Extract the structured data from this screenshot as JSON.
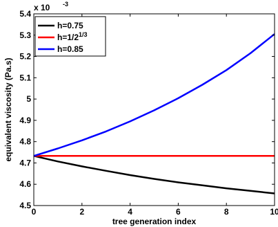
{
  "chart_data": {
    "type": "line",
    "xlabel": "tree generation index",
    "ylabel": "equivalent viscosity (Pa.s)",
    "y_multiplier": {
      "base": "x 10",
      "exponent": "-3"
    },
    "xlim": [
      0,
      10
    ],
    "ylim": [
      4.5,
      5.4
    ],
    "x_ticks": [
      0,
      2,
      4,
      6,
      8,
      10
    ],
    "y_ticks": [
      4.5,
      4.6,
      4.7,
      4.8,
      4.9,
      5,
      5.1,
      5.2,
      5.3,
      5.4
    ],
    "x_tick_labels": [
      "0",
      "2",
      "4",
      "6",
      "8",
      "10"
    ],
    "y_tick_labels": [
      "4.5",
      "4.6",
      "4.7",
      "4.8",
      "4.9",
      "5",
      "5.1",
      "5.2",
      "5.3",
      "5.4"
    ],
    "grid": false,
    "legend_position": "top-left",
    "x": [
      0,
      1,
      2,
      3,
      4,
      5,
      6,
      7,
      8,
      9,
      10
    ],
    "series": [
      {
        "name": "h=0.75",
        "legend_base": "h=0.75",
        "legend_sup": "",
        "color": "#000000",
        "values": [
          4.733,
          4.707,
          4.684,
          4.663,
          4.643,
          4.625,
          4.609,
          4.595,
          4.581,
          4.569,
          4.557
        ]
      },
      {
        "name": "h=1/2^(1/3)",
        "legend_base": "h=1/2",
        "legend_sup": "1/3",
        "color": "#ff0000",
        "values": [
          4.733,
          4.733,
          4.733,
          4.733,
          4.733,
          4.733,
          4.733,
          4.733,
          4.733,
          4.733,
          4.733
        ]
      },
      {
        "name": "h=0.85",
        "legend_base": "h=0.85",
        "legend_sup": "",
        "color": "#0000ff",
        "values": [
          4.733,
          4.768,
          4.806,
          4.848,
          4.895,
          4.947,
          5.004,
          5.067,
          5.136,
          5.215,
          5.305
        ]
      }
    ]
  }
}
